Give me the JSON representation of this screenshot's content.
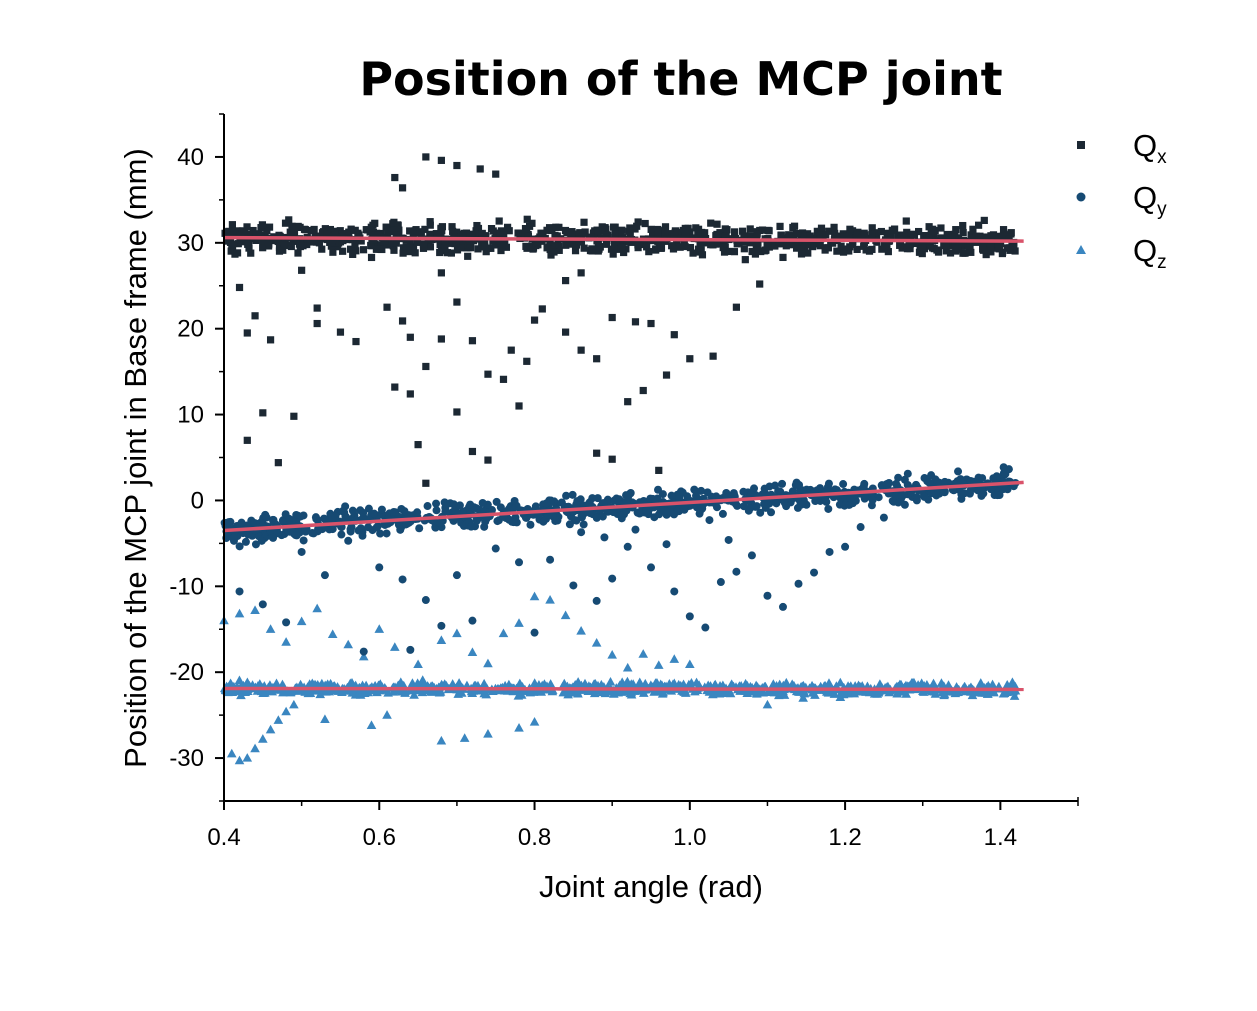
{
  "chart_data": {
    "type": "scatter",
    "title": "Position of the MCP joint",
    "xlabel": "Joint angle (rad)",
    "ylabel": "Position of the MCP joint in Base frame (mm)",
    "xlim": [
      0.4,
      1.5
    ],
    "ylim": [
      -35,
      45
    ],
    "xticks": [
      "0.4",
      "0.6",
      "0.8",
      "1.0",
      "1.2",
      "1.4"
    ],
    "xtick_values": [
      0.4,
      0.6,
      0.8,
      1.0,
      1.2,
      1.4
    ],
    "yticks": [
      "-30",
      "-20",
      "-10",
      "0",
      "10",
      "20",
      "30",
      "40"
    ],
    "ytick_values": [
      -30,
      -20,
      -10,
      0,
      10,
      20,
      30,
      40
    ],
    "grid": false,
    "legend_position": "top-right",
    "series": [
      {
        "key": "Qx",
        "name": "Q",
        "sub": "x",
        "marker": "square",
        "color": "#1c2833",
        "band": {
          "x_range": [
            0.4,
            1.42
          ],
          "center": 30.2,
          "spread": 3.0
        },
        "scatter_points": [
          [
            0.66,
            40.0
          ],
          [
            0.68,
            39.6
          ],
          [
            0.7,
            39.0
          ],
          [
            0.73,
            38.6
          ],
          [
            0.75,
            38.0
          ],
          [
            0.62,
            37.6
          ],
          [
            0.63,
            36.4
          ],
          [
            0.42,
            24.8
          ],
          [
            0.44,
            21.5
          ],
          [
            0.43,
            19.5
          ],
          [
            0.46,
            18.7
          ],
          [
            0.45,
            10.2
          ],
          [
            0.43,
            7.0
          ],
          [
            0.47,
            4.4
          ],
          [
            0.5,
            26.8
          ],
          [
            0.52,
            20.6
          ],
          [
            0.55,
            19.6
          ],
          [
            0.57,
            18.5
          ],
          [
            0.49,
            9.8
          ],
          [
            0.52,
            22.4
          ],
          [
            0.61,
            22.5
          ],
          [
            0.63,
            20.9
          ],
          [
            0.64,
            19.0
          ],
          [
            0.62,
            13.2
          ],
          [
            0.64,
            12.4
          ],
          [
            0.66,
            15.6
          ],
          [
            0.65,
            6.5
          ],
          [
            0.66,
            2.0
          ],
          [
            0.68,
            18.8
          ],
          [
            0.7,
            10.3
          ],
          [
            0.74,
            14.7
          ],
          [
            0.76,
            14.1
          ],
          [
            0.72,
            5.7
          ],
          [
            0.74,
            4.7
          ],
          [
            0.77,
            17.5
          ],
          [
            0.79,
            16.2
          ],
          [
            0.81,
            22.3
          ],
          [
            0.8,
            21.0
          ],
          [
            0.84,
            19.6
          ],
          [
            0.86,
            17.5
          ],
          [
            0.88,
            16.5
          ],
          [
            0.9,
            21.3
          ],
          [
            0.93,
            20.8
          ],
          [
            0.95,
            20.6
          ],
          [
            0.98,
            19.3
          ],
          [
            0.88,
            5.5
          ],
          [
            0.9,
            4.8
          ],
          [
            0.92,
            11.5
          ],
          [
            0.94,
            12.8
          ],
          [
            0.97,
            14.6
          ],
          [
            1.0,
            16.5
          ],
          [
            1.03,
            16.8
          ],
          [
            0.96,
            3.5
          ],
          [
            1.06,
            22.5
          ],
          [
            1.09,
            25.2
          ],
          [
            1.12,
            28.3
          ],
          [
            0.84,
            25.6
          ],
          [
            0.86,
            26.5
          ],
          [
            0.68,
            26.5
          ],
          [
            0.7,
            23.1
          ],
          [
            0.72,
            18.6
          ],
          [
            0.78,
            11.0
          ]
        ]
      },
      {
        "key": "Qy",
        "name": "Q",
        "sub": "y",
        "marker": "circle",
        "color": "#164a73",
        "band": {
          "x_range": [
            0.4,
            1.42
          ],
          "center": -0.5,
          "spread": 2.6
        },
        "scatter_points": [
          [
            0.42,
            -10.6
          ],
          [
            0.45,
            -12.1
          ],
          [
            0.48,
            -14.2
          ],
          [
            0.5,
            -6.0
          ],
          [
            0.53,
            -8.7
          ],
          [
            0.56,
            -4.7
          ],
          [
            0.58,
            -17.6
          ],
          [
            0.6,
            -7.8
          ],
          [
            0.63,
            -9.2
          ],
          [
            0.66,
            -11.6
          ],
          [
            0.7,
            -8.7
          ],
          [
            0.72,
            -14.0
          ],
          [
            0.75,
            -5.6
          ],
          [
            0.78,
            -7.2
          ],
          [
            0.82,
            -6.9
          ],
          [
            0.85,
            -9.9
          ],
          [
            0.88,
            -11.7
          ],
          [
            0.9,
            -9.1
          ],
          [
            0.92,
            -5.4
          ],
          [
            0.95,
            -7.8
          ],
          [
            0.98,
            -10.6
          ],
          [
            1.0,
            -13.5
          ],
          [
            1.02,
            -14.8
          ],
          [
            1.04,
            -9.5
          ],
          [
            1.06,
            -8.3
          ],
          [
            1.08,
            -6.4
          ],
          [
            1.1,
            -11.1
          ],
          [
            1.12,
            -12.4
          ],
          [
            1.14,
            -9.7
          ],
          [
            1.16,
            -8.4
          ],
          [
            1.18,
            -6.0
          ],
          [
            1.2,
            -5.4
          ],
          [
            1.22,
            -3.1
          ],
          [
            1.25,
            -2.0
          ],
          [
            0.86,
            -3.7
          ],
          [
            0.89,
            -4.3
          ],
          [
            0.93,
            -3.4
          ],
          [
            0.97,
            -5.1
          ],
          [
            1.05,
            -4.6
          ],
          [
            0.64,
            -17.4
          ],
          [
            0.68,
            -14.6
          ],
          [
            0.8,
            -15.4
          ]
        ]
      },
      {
        "key": "Qz",
        "name": "Q",
        "sub": "z",
        "marker": "triangle",
        "color": "#3a86c0",
        "band": {
          "x_range": [
            0.4,
            1.42
          ],
          "center": -21.9,
          "spread": 1.2
        },
        "scatter_points": [
          [
            0.41,
            -29.5
          ],
          [
            0.42,
            -30.3
          ],
          [
            0.43,
            -30.0
          ],
          [
            0.44,
            -28.9
          ],
          [
            0.45,
            -27.8
          ],
          [
            0.46,
            -26.7
          ],
          [
            0.47,
            -25.6
          ],
          [
            0.48,
            -24.6
          ],
          [
            0.49,
            -23.8
          ],
          [
            0.53,
            -25.5
          ],
          [
            0.59,
            -26.2
          ],
          [
            0.61,
            -25.0
          ],
          [
            0.68,
            -28.0
          ],
          [
            0.71,
            -27.7
          ],
          [
            0.74,
            -27.2
          ],
          [
            0.78,
            -26.5
          ],
          [
            0.8,
            -25.8
          ],
          [
            1.1,
            -23.8
          ],
          [
            0.4,
            -14.0
          ],
          [
            0.42,
            -13.2
          ],
          [
            0.44,
            -12.8
          ],
          [
            0.46,
            -15.0
          ],
          [
            0.48,
            -16.5
          ],
          [
            0.5,
            -14.1
          ],
          [
            0.52,
            -12.6
          ],
          [
            0.54,
            -15.6
          ],
          [
            0.56,
            -16.8
          ],
          [
            0.58,
            -18.2
          ],
          [
            0.6,
            -15.0
          ],
          [
            0.62,
            -17.1
          ],
          [
            0.65,
            -19.1
          ],
          [
            0.68,
            -16.3
          ],
          [
            0.7,
            -15.5
          ],
          [
            0.72,
            -17.7
          ],
          [
            0.74,
            -19.0
          ],
          [
            0.76,
            -15.5
          ],
          [
            0.78,
            -14.3
          ],
          [
            0.8,
            -11.2
          ],
          [
            0.82,
            -11.6
          ],
          [
            0.84,
            -13.4
          ],
          [
            0.86,
            -15.2
          ],
          [
            0.88,
            -16.6
          ],
          [
            0.9,
            -18.0
          ],
          [
            0.92,
            -19.5
          ],
          [
            0.94,
            -17.9
          ],
          [
            0.96,
            -19.2
          ],
          [
            0.98,
            -18.5
          ],
          [
            1.0,
            -19.1
          ]
        ]
      }
    ],
    "fit_lines": [
      {
        "series": "Qx",
        "color": "#d9536a",
        "points": [
          [
            0.4,
            30.6
          ],
          [
            1.43,
            30.2
          ]
        ]
      },
      {
        "series": "Qy",
        "color": "#d9536a",
        "points": [
          [
            0.4,
            -3.5
          ],
          [
            1.43,
            2.1
          ]
        ]
      },
      {
        "series": "Qz",
        "color": "#d9536a",
        "points": [
          [
            0.4,
            -21.9
          ],
          [
            1.43,
            -22.0
          ]
        ]
      }
    ]
  }
}
